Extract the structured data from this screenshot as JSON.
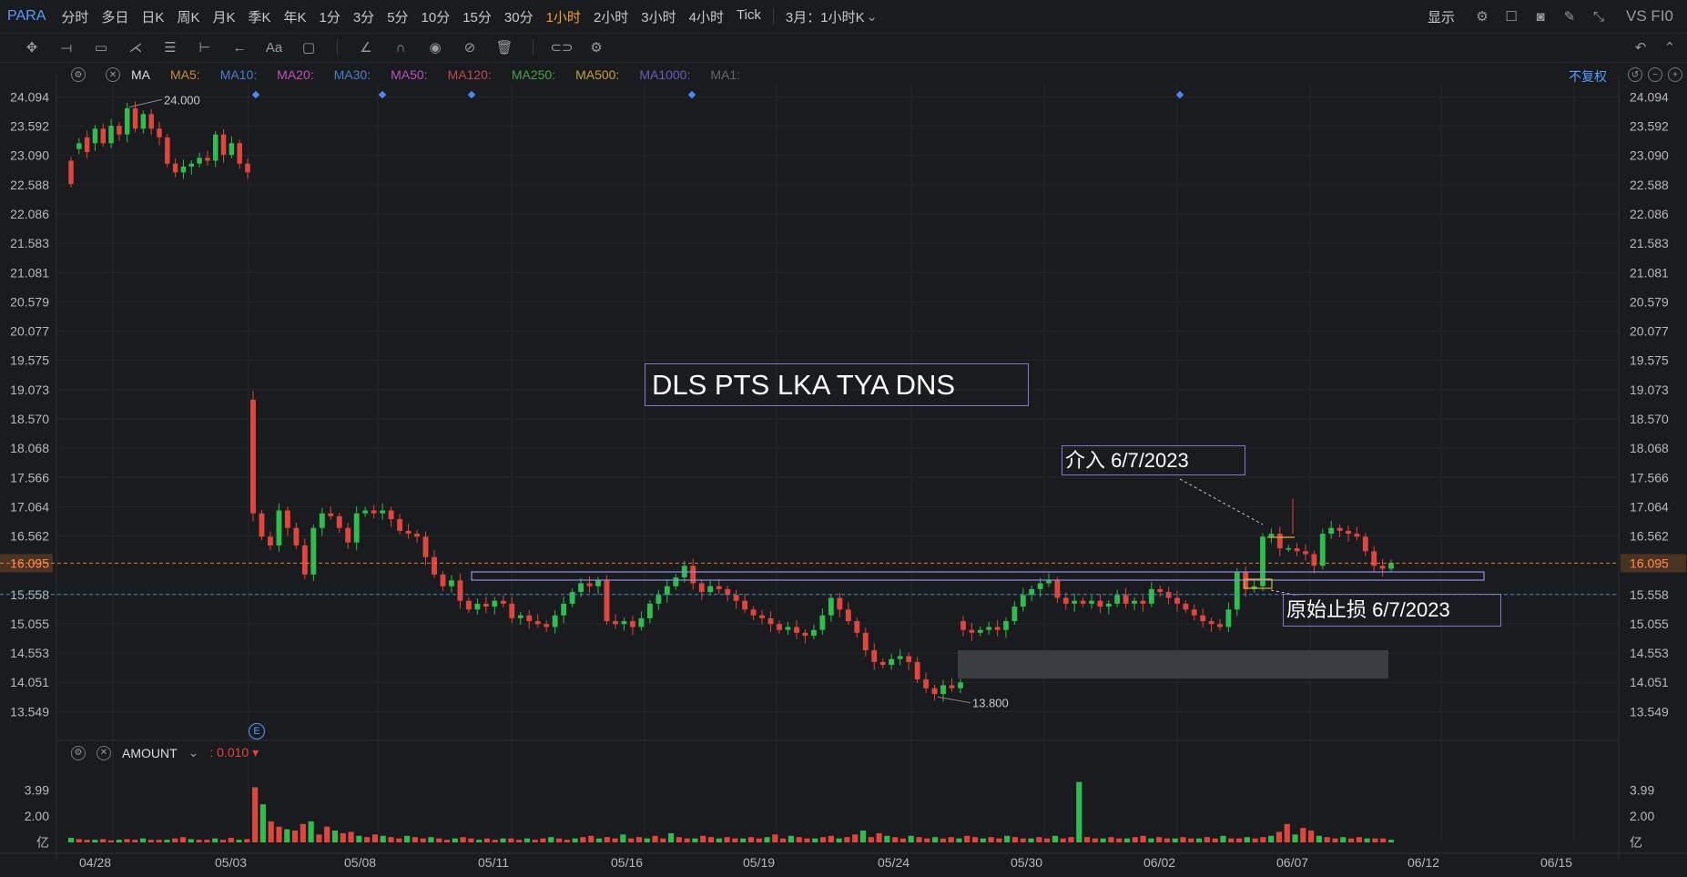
{
  "symbol": "PARA",
  "timeframes": [
    "分时",
    "多日",
    "日K",
    "周K",
    "月K",
    "季K",
    "年K",
    "1分",
    "3分",
    "5分",
    "10分",
    "15分",
    "30分",
    "1小时",
    "2小时",
    "3小时",
    "4小时",
    "Tick"
  ],
  "active_timeframe": "1小时",
  "period_select": "3月：1小时K",
  "display_label": "显示",
  "vs_label": "VS FI0",
  "fuquan_label": "不复权",
  "ma_legend": {
    "label": "MA",
    "items": [
      {
        "name": "MA5:",
        "color": "#c98a3a"
      },
      {
        "name": "MA10:",
        "color": "#4a7fd0"
      },
      {
        "name": "MA20:",
        "color": "#c050c0"
      },
      {
        "name": "MA30:",
        "color": "#4a7fd0"
      },
      {
        "name": "MA50:",
        "color": "#c050c0"
      },
      {
        "name": "MA120:",
        "color": "#c04a4a"
      },
      {
        "name": "MA250:",
        "color": "#4aa04a"
      },
      {
        "name": "MA500:",
        "color": "#c9a030"
      },
      {
        "name": "MA1000:",
        "color": "#6a5ac0"
      },
      {
        "name": "MA1:",
        "color": "#666666"
      }
    ]
  },
  "volume_legend": {
    "label": "AMOUNT",
    "value": ": 0.010 ▾"
  },
  "annotations": {
    "title": "DLS PTS LKA TYA DNS",
    "entry": "介入 6/7/2023",
    "stop": "原始止损 6/7/2023"
  },
  "e_marker": "E",
  "colors": {
    "up": "#2ebd4e",
    "down": "#e0463e",
    "background": "#1a1b1e",
    "grid": "#26272b",
    "accent": "#f0a030",
    "last_price_line": "#e07a30",
    "ref_line": "#3a8ad0"
  },
  "chart_data": {
    "type": "candlestick",
    "price_axis_ticks": [
      "24.094",
      "23.592",
      "23.090",
      "22.588",
      "22.086",
      "21.583",
      "21.081",
      "20.579",
      "20.077",
      "19.575",
      "19.073",
      "18.570",
      "18.068",
      "17.566",
      "17.064",
      "16.562",
      "16.095",
      "15.558",
      "15.055",
      "14.553",
      "14.051",
      "13.549"
    ],
    "y_range": [
      13.07,
      24.32
    ],
    "x_tick_labels": [
      "04/28",
      "05/03",
      "05/08",
      "05/11",
      "05/16",
      "05/19",
      "05/24",
      "05/30",
      "06/02",
      "06/07",
      "06/12",
      "06/15"
    ],
    "last_price": 16.095,
    "ref_price": 15.558,
    "high_label": "24.000",
    "low_label": "13.800",
    "volume_axis_ticks": [
      "3.99",
      "2.00",
      "亿"
    ],
    "volume_range": [
      0,
      5.2
    ],
    "segments": [
      {
        "points": [
          [
            23.0,
            22.6
          ],
          [
            23.2,
            23.3
          ],
          [
            23.4,
            23.15
          ],
          [
            23.3,
            23.55
          ],
          [
            23.55,
            23.3
          ],
          [
            23.3,
            23.6
          ],
          [
            23.6,
            23.45
          ],
          [
            23.45,
            23.9
          ],
          [
            23.9,
            23.55
          ],
          [
            23.55,
            23.8
          ],
          [
            23.8,
            23.55
          ],
          [
            23.55,
            23.4
          ],
          [
            23.4,
            22.95
          ],
          [
            22.95,
            22.8
          ],
          [
            22.8,
            22.9
          ],
          [
            22.9,
            22.95
          ],
          [
            22.95,
            23.05
          ],
          [
            23.05,
            23.0
          ],
          [
            23.0,
            23.45
          ],
          [
            23.45,
            23.1
          ],
          [
            23.1,
            23.3
          ],
          [
            23.3,
            22.95
          ],
          [
            22.95,
            22.8
          ]
        ]
      },
      {
        "points": [
          [
            18.9,
            16.95
          ],
          [
            16.95,
            16.55
          ],
          [
            16.55,
            16.4
          ],
          [
            16.4,
            17.0
          ],
          [
            17.0,
            16.7
          ],
          [
            16.7,
            16.4
          ],
          [
            16.4,
            15.9
          ],
          [
            15.9,
            16.7
          ],
          [
            16.7,
            16.95
          ],
          [
            16.95,
            16.9
          ],
          [
            16.9,
            16.7
          ],
          [
            16.7,
            16.45
          ],
          [
            16.45,
            16.95
          ],
          [
            16.95,
            17.0
          ],
          [
            17.0,
            16.95
          ],
          [
            16.95,
            17.0
          ],
          [
            17.0,
            16.85
          ],
          [
            16.85,
            16.65
          ],
          [
            16.65,
            16.6
          ],
          [
            16.6,
            16.55
          ],
          [
            16.55,
            16.2
          ],
          [
            16.2,
            15.9
          ],
          [
            15.9,
            15.7
          ],
          [
            15.7,
            15.8
          ],
          [
            15.8,
            15.45
          ],
          [
            15.45,
            15.3
          ],
          [
            15.3,
            15.4
          ],
          [
            15.4,
            15.35
          ],
          [
            15.35,
            15.45
          ],
          [
            15.45,
            15.4
          ],
          [
            15.4,
            15.15
          ],
          [
            15.15,
            15.2
          ],
          [
            15.2,
            15.1
          ],
          [
            15.1,
            15.05
          ],
          [
            15.05,
            15.0
          ],
          [
            15.0,
            15.2
          ],
          [
            15.2,
            15.4
          ],
          [
            15.4,
            15.6
          ],
          [
            15.6,
            15.75
          ],
          [
            15.75,
            15.7
          ],
          [
            15.7,
            15.8
          ],
          [
            15.8,
            15.1
          ],
          [
            15.1,
            15.05
          ],
          [
            15.05,
            15.1
          ],
          [
            15.1,
            15.0
          ],
          [
            15.0,
            15.15
          ],
          [
            15.15,
            15.4
          ],
          [
            15.4,
            15.55
          ],
          [
            15.55,
            15.7
          ],
          [
            15.7,
            15.85
          ],
          [
            15.85,
            16.05
          ],
          [
            16.05,
            15.75
          ],
          [
            15.75,
            15.6
          ],
          [
            15.6,
            15.7
          ],
          [
            15.7,
            15.65
          ],
          [
            15.65,
            15.55
          ],
          [
            15.55,
            15.45
          ],
          [
            15.45,
            15.3
          ],
          [
            15.3,
            15.2
          ],
          [
            15.2,
            15.15
          ],
          [
            15.15,
            15.05
          ],
          [
            15.05,
            14.95
          ],
          [
            14.95,
            15.0
          ],
          [
            15.0,
            14.9
          ],
          [
            14.9,
            14.85
          ],
          [
            14.85,
            14.95
          ],
          [
            14.95,
            15.2
          ],
          [
            15.2,
            15.5
          ],
          [
            15.5,
            15.3
          ],
          [
            15.3,
            15.1
          ],
          [
            15.1,
            14.9
          ],
          [
            14.9,
            14.6
          ],
          [
            14.6,
            14.4
          ],
          [
            14.4,
            14.35
          ],
          [
            14.35,
            14.45
          ],
          [
            14.45,
            14.5
          ],
          [
            14.5,
            14.4
          ],
          [
            14.4,
            14.1
          ],
          [
            14.1,
            13.95
          ],
          [
            13.95,
            13.85
          ],
          [
            13.85,
            14.0
          ],
          [
            14.0,
            13.95
          ],
          [
            13.95,
            14.05
          ]
        ]
      },
      {
        "points": [
          [
            15.1,
            14.95
          ],
          [
            14.95,
            14.9
          ],
          [
            14.9,
            14.95
          ],
          [
            14.95,
            15.0
          ],
          [
            15.0,
            14.95
          ],
          [
            14.95,
            15.1
          ],
          [
            15.1,
            15.35
          ],
          [
            15.35,
            15.55
          ],
          [
            15.55,
            15.65
          ],
          [
            15.65,
            15.75
          ],
          [
            15.75,
            15.8
          ],
          [
            15.8,
            15.5
          ],
          [
            15.5,
            15.4
          ],
          [
            15.4,
            15.45
          ],
          [
            15.45,
            15.4
          ],
          [
            15.4,
            15.45
          ],
          [
            15.45,
            15.35
          ],
          [
            15.35,
            15.4
          ],
          [
            15.4,
            15.55
          ],
          [
            15.55,
            15.4
          ],
          [
            15.4,
            15.45
          ],
          [
            15.45,
            15.4
          ],
          [
            15.4,
            15.65
          ],
          [
            15.65,
            15.6
          ],
          [
            15.6,
            15.5
          ],
          [
            15.5,
            15.4
          ],
          [
            15.4,
            15.3
          ],
          [
            15.3,
            15.2
          ],
          [
            15.2,
            15.1
          ],
          [
            15.1,
            15.05
          ],
          [
            15.05,
            15.0
          ],
          [
            15.0,
            15.3
          ],
          [
            15.3,
            15.95
          ],
          [
            15.95,
            15.65
          ],
          [
            15.65,
            15.7
          ],
          [
            15.7,
            16.55
          ],
          [
            16.55,
            16.6
          ],
          [
            16.6,
            16.35
          ],
          [
            16.35,
            16.35
          ],
          [
            16.35,
            16.3
          ],
          [
            16.3,
            16.25
          ],
          [
            16.25,
            16.05
          ],
          [
            16.05,
            16.6
          ],
          [
            16.6,
            16.7
          ],
          [
            16.7,
            16.65
          ],
          [
            16.65,
            16.6
          ],
          [
            16.6,
            16.55
          ],
          [
            16.55,
            16.3
          ],
          [
            16.3,
            16.05
          ],
          [
            16.05,
            16.0
          ],
          [
            16.0,
            16.1
          ]
        ]
      }
    ],
    "volume": [
      0.35,
      0.25,
      0.2,
      0.2,
      0.25,
      0.15,
      0.2,
      0.25,
      0.2,
      0.3,
      0.2,
      0.2,
      0.2,
      0.3,
      0.4,
      0.25,
      0.2,
      0.2,
      0.3,
      0.2,
      0.35,
      0.2,
      0.25,
      4.2,
      2.9,
      1.6,
      1.2,
      1.0,
      0.9,
      1.4,
      1.6,
      0.6,
      1.2,
      0.9,
      0.7,
      0.8,
      0.5,
      0.4,
      0.6,
      0.5,
      0.4,
      0.3,
      0.5,
      0.4,
      0.3,
      0.4,
      0.3,
      0.2,
      0.3,
      0.4,
      0.3,
      0.2,
      0.3,
      0.2,
      0.3,
      0.3,
      0.2,
      0.3,
      0.2,
      0.3,
      0.4,
      0.3,
      0.2,
      0.3,
      0.4,
      0.5,
      0.3,
      0.4,
      0.3,
      0.6,
      0.3,
      0.4,
      0.3,
      0.5,
      0.3,
      0.7,
      0.4,
      0.3,
      0.3,
      0.5,
      0.4,
      0.3,
      0.4,
      0.3,
      0.3,
      0.4,
      0.3,
      0.4,
      0.6,
      0.3,
      0.5,
      0.4,
      0.3,
      0.3,
      0.4,
      0.5,
      0.3,
      0.4,
      0.6,
      0.9,
      0.4,
      0.7,
      0.5,
      0.4,
      0.3,
      0.5,
      0.4,
      0.3,
      0.4,
      0.3,
      0.4,
      0.3,
      0.5,
      0.4,
      0.3,
      0.4,
      0.3,
      0.5,
      0.4,
      0.3,
      0.3,
      0.4,
      0.3,
      0.5,
      0.3,
      0.4,
      4.6,
      0.4,
      0.3,
      0.3,
      0.4,
      0.3,
      0.3,
      0.4,
      0.5,
      0.3,
      0.4,
      0.3,
      0.3,
      0.4,
      0.3,
      0.3,
      0.4,
      0.3,
      0.5,
      0.3,
      0.3,
      0.4,
      0.3,
      0.4,
      0.5,
      0.8,
      1.4,
      0.6,
      1.1,
      0.9,
      0.5,
      0.4,
      0.3,
      0.4,
      0.3,
      0.4,
      0.3,
      0.3,
      0.3,
      0.2
    ]
  }
}
